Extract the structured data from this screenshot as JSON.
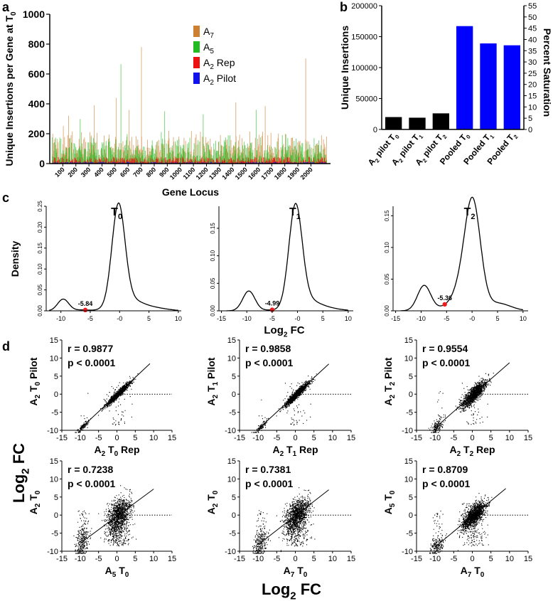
{
  "panel_labels": {
    "a": "a",
    "b": "b",
    "c": "c",
    "d": "d"
  },
  "chart_data": [
    {
      "id": "a",
      "type": "bar",
      "ylabel": "Unique Insertions per Gene at T0",
      "ylabel_base": "Unique Insertions per Gene at T",
      "ylabel_sub": "0",
      "xlabel": "Gene Locus",
      "ylim": [
        0,
        1000
      ],
      "yticks": [
        0,
        200,
        400,
        600,
        800,
        1000
      ],
      "xlim": [
        0,
        2150
      ],
      "xticks": [
        100,
        200,
        300,
        400,
        500,
        600,
        700,
        800,
        900,
        1000,
        1100,
        1200,
        1300,
        1400,
        1500,
        1600,
        1700,
        1800,
        1900,
        2000
      ],
      "legend_position": "top-right",
      "series": [
        {
          "name": "A7",
          "base": "A",
          "sub": "7",
          "color": "#cd7f32",
          "typical_max": 200,
          "peaks": [
            [
              702,
              780
            ],
            [
              1960,
              705
            ],
            [
              1425,
              410
            ],
            [
              510,
              440
            ],
            [
              340,
              390
            ],
            [
              145,
              320
            ],
            [
              1650,
              385
            ]
          ]
        },
        {
          "name": "A5",
          "base": "A",
          "sub": "5",
          "color": "#22bb22",
          "typical_max": 170,
          "peaks": [
            [
              545,
              665
            ],
            [
              880,
              350
            ],
            [
              1175,
              330
            ],
            [
              1580,
              360
            ]
          ]
        },
        {
          "name": "A2 Rep",
          "base": "A",
          "sub": "2",
          "suffix": " Rep",
          "color": "#ee1111",
          "typical_max": 45,
          "peaks": []
        },
        {
          "name": "A2 Pilot",
          "base": "A",
          "sub": "2",
          "suffix": " Pilot",
          "color": "#1111ee",
          "typical_max": 12,
          "peaks": []
        }
      ]
    },
    {
      "id": "b",
      "type": "bar",
      "ylabel": "Unique Insertions",
      "ylabel_right": "Percent Saturation",
      "ylim": [
        0,
        200000
      ],
      "yticks": [
        0,
        50000,
        100000,
        150000,
        200000
      ],
      "right_ylim": [
        0,
        55
      ],
      "right_yticks": [
        0,
        5,
        10,
        15,
        20,
        25,
        30,
        35,
        40,
        45,
        50,
        55
      ],
      "categories": [
        "A2 pilot T0",
        "A2 pilot T1",
        "A2 pilot T2",
        "Pooled T0",
        "Pooled T1",
        "Pooled T2"
      ],
      "category_parts": [
        {
          "base": "A",
          "sub1": "2",
          "mid": " pilot T",
          "sub2": "0"
        },
        {
          "base": "A",
          "sub1": "2",
          "mid": " pilot T",
          "sub2": "1"
        },
        {
          "base": "A",
          "sub1": "2",
          "mid": " pilot T",
          "sub2": "2"
        },
        {
          "base": "Pooled T",
          "sub1": "0",
          "mid": "",
          "sub2": ""
        },
        {
          "base": "Pooled T",
          "sub1": "1",
          "mid": "",
          "sub2": ""
        },
        {
          "base": "Pooled T",
          "sub1": "2",
          "mid": "",
          "sub2": ""
        }
      ],
      "values": [
        20000,
        19000,
        26000,
        167000,
        139000,
        136000
      ],
      "colors": [
        "#000000",
        "#000000",
        "#000000",
        "#0000ff",
        "#0000ff",
        "#0000ff"
      ]
    },
    {
      "id": "c",
      "type": "line",
      "ylabel": "Density",
      "xlabel": "Log2 FC",
      "xlabel_base": "Log",
      "xlabel_sub": "2",
      "xlabel_suffix": " FC",
      "panels": [
        {
          "title": "T0",
          "title_base": "T",
          "title_sub": "0",
          "xlim": [
            -12.5,
            10.5
          ],
          "xticks": [
            -10,
            -5,
            0,
            5,
            10
          ],
          "xticklabels": [
            "-10",
            "-5",
            "-0",
            "5",
            "10"
          ],
          "ylim": [
            0,
            0.25
          ],
          "yticks": [
            0.0,
            0.05,
            0.1,
            0.15,
            0.2,
            0.25
          ],
          "yticklabels": [
            "0.00",
            "0.05",
            "0.10",
            "0.15",
            "0.20",
            "0.25"
          ],
          "components": [
            [
              0.028,
              -9.6,
              0.95
            ],
            [
              0.002,
              -6.5,
              1.2
            ],
            [
              0.236,
              -0.2,
              1.1
            ],
            [
              0.028,
              1.5,
              2.4
            ],
            [
              0.005,
              6.5,
              2.0
            ]
          ],
          "x_range": [
            -12,
            10
          ],
          "threshold": -5.84,
          "threshold_label": "-5.84"
        },
        {
          "title": "T1",
          "title_base": "T",
          "title_sub": "1",
          "xlim": [
            -15.5,
            11
          ],
          "xticks": [
            -15,
            -10,
            -5,
            0,
            5,
            10
          ],
          "xticklabels": [
            "-15",
            "-10",
            "-5",
            "-0",
            "5",
            "10"
          ],
          "ylim": [
            0,
            0.19
          ],
          "yticks": [
            0.0,
            0.05,
            0.1,
            0.15
          ],
          "yticklabels": [
            "0.00",
            "0.05",
            "0.10",
            "0.15"
          ],
          "components": [
            [
              0.036,
              -9.6,
              1.2
            ],
            [
              0.001,
              -6.0,
              1.5
            ],
            [
              0.18,
              -0.4,
              1.3
            ],
            [
              0.02,
              1.5,
              2.5
            ],
            [
              0.004,
              6.0,
              2.5
            ]
          ],
          "x_range": [
            -14,
            10
          ],
          "threshold": -4.99,
          "threshold_label": "-4.99"
        },
        {
          "title": "T2",
          "title_base": "T",
          "title_sub": "2",
          "xlim": [
            -15.5,
            11
          ],
          "xticks": [
            -15,
            -10,
            -5,
            0,
            5,
            10
          ],
          "xticklabels": [
            "-15",
            "-10",
            "-5",
            "-0",
            "5",
            "10"
          ],
          "ylim": [
            0,
            0.165
          ],
          "yticks": [
            0.0,
            0.05,
            0.1,
            0.15
          ],
          "yticklabels": [
            "0.00",
            "0.05",
            "0.10",
            "0.15"
          ],
          "components": [
            [
              0.04,
              -9.4,
              1.3
            ],
            [
              0.003,
              -6.0,
              1.5
            ],
            [
              0.145,
              0.2,
              1.5
            ],
            [
              0.045,
              -1.5,
              2.0
            ],
            [
              0.012,
              5.0,
              2.5
            ]
          ],
          "x_range": [
            -14,
            10
          ],
          "threshold": -5.36,
          "threshold_label": "-5.36"
        }
      ]
    },
    {
      "id": "d",
      "type": "scatter",
      "shared_label": "Log2 FC",
      "shared_label_base": "Log",
      "shared_label_sub": "2",
      "shared_label_suffix": " FC",
      "xlim": [
        -15,
        15
      ],
      "ylim": [
        -10,
        15
      ],
      "xticks": [
        -15,
        -10,
        -5,
        0,
        5,
        10,
        15
      ],
      "yticks": [
        -10,
        -5,
        0,
        5,
        10,
        15
      ],
      "panels": [
        {
          "r": "r = 0.9877",
          "p": "p < 0.0001",
          "xlabel": [
            "A",
            "2",
            " T",
            "0",
            " Rep"
          ],
          "ylabel": [
            "A",
            "2",
            " T",
            "0",
            " Pilot"
          ],
          "slope": 0.95,
          "intercept": -0.1,
          "noise": 0.45,
          "n": 1400,
          "cluster": 0.08,
          "spread": 0.05,
          "fit_x": [
            -10,
            9
          ]
        },
        {
          "r": "r = 0.9858",
          "p": "p < 0.0001",
          "xlabel": [
            "A",
            "2",
            " T",
            "1",
            " Rep"
          ],
          "ylabel": [
            "A",
            "2",
            " T",
            "1",
            " Pilot"
          ],
          "slope": 0.95,
          "intercept": -0.2,
          "noise": 0.5,
          "n": 1400,
          "cluster": 0.08,
          "spread": 0.05,
          "fit_x": [
            -10,
            9
          ]
        },
        {
          "r": "r = 0.9554",
          "p": "p < 0.0001",
          "xlabel": [
            "A",
            "2",
            " T",
            "2",
            " Rep"
          ],
          "ylabel": [
            "A",
            "2",
            " T",
            "2",
            " Pilot"
          ],
          "slope": 0.9,
          "intercept": -0.3,
          "noise": 1.0,
          "n": 1500,
          "cluster": 0.1,
          "spread": 0.06,
          "fit_x": [
            -10,
            10
          ]
        },
        {
          "r": "r = 0.7238",
          "p": "p < 0.0001",
          "xlabel": [
            "A",
            "5",
            " T",
            "0",
            ""
          ],
          "ylabel": [
            "A",
            "2",
            " T",
            "0",
            ""
          ],
          "slope": 0.75,
          "intercept": -0.3,
          "noise": 2.2,
          "n": 2200,
          "cluster": 0.18,
          "spread": 0.3,
          "fit_x": [
            -10,
            10
          ]
        },
        {
          "r": "r = 0.7381",
          "p": "p < 0.0001",
          "xlabel": [
            "A",
            "7",
            " T",
            "0",
            ""
          ],
          "ylabel": [
            "A",
            "2",
            " T",
            "0",
            ""
          ],
          "slope": 0.8,
          "intercept": -0.2,
          "noise": 2.0,
          "n": 2200,
          "cluster": 0.16,
          "spread": 0.28,
          "fit_x": [
            -10,
            9
          ]
        },
        {
          "r": "r = 0.8709",
          "p": "p < 0.0001",
          "xlabel": [
            "A",
            "7",
            " T",
            "0",
            ""
          ],
          "ylabel": [
            "A",
            "5",
            " T",
            "0",
            ""
          ],
          "slope": 0.85,
          "intercept": -0.3,
          "noise": 1.3,
          "n": 1800,
          "cluster": 0.12,
          "spread": 0.15,
          "fit_x": [
            -10,
            9
          ]
        }
      ]
    }
  ]
}
